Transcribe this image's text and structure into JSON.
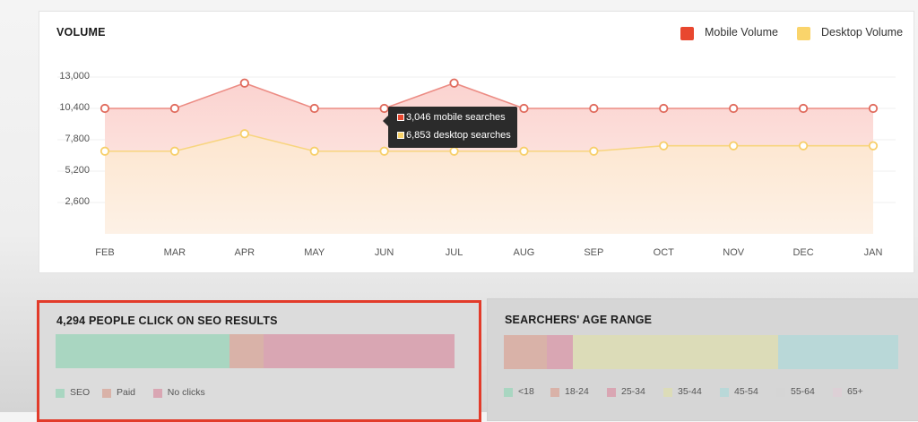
{
  "volume": {
    "title": "VOLUME",
    "legend": [
      {
        "label": "Mobile Volume",
        "color": "#e8472f"
      },
      {
        "label": "Desktop Volume",
        "color": "#fad46b"
      }
    ]
  },
  "chart_data": {
    "type": "area",
    "title": "VOLUME",
    "categories": [
      "FEB",
      "MAR",
      "APR",
      "MAY",
      "JUN",
      "JUL",
      "AUG",
      "SEP",
      "OCT",
      "NOV",
      "DEC",
      "JAN"
    ],
    "yticks": [
      "13,000",
      "10,400",
      "7,800",
      "5,200",
      "2,600"
    ],
    "ylim": [
      0,
      13000
    ],
    "series": [
      {
        "name": "Mobile Volume",
        "color": "#e8472f",
        "values": [
          10400,
          10400,
          12500,
          10400,
          10400,
          12500,
          10400,
          10400,
          10400,
          10400,
          10400,
          10400
        ]
      },
      {
        "name": "Desktop Volume",
        "color": "#fad46b",
        "values": [
          6853,
          6853,
          8300,
          6853,
          6853,
          6853,
          6853,
          6853,
          7300,
          7300,
          7300,
          7300
        ]
      }
    ],
    "legend_position": "top-right",
    "grid": true
  },
  "tooltip": {
    "mobile": "3,046 mobile searches",
    "desktop": "6,853 desktop searches"
  },
  "seo": {
    "title": "4,294 PEOPLE CLICK ON SEO RESULTS",
    "segments": [
      {
        "label": "SEO",
        "fraction": 0.437,
        "color": "#a9d6c1"
      },
      {
        "label": "Paid",
        "fraction": 0.085,
        "color": "#d9b2a8"
      },
      {
        "label": "No clicks",
        "fraction": 0.478,
        "color": "#d9a6b3"
      }
    ]
  },
  "age": {
    "title": "SEARCHERS' AGE RANGE",
    "segments": [
      {
        "label": "<18",
        "fraction": 0.0,
        "color": "#a9d6c1"
      },
      {
        "label": "18-24",
        "fraction": 0.11,
        "color": "#d9b2a8"
      },
      {
        "label": "25-34",
        "fraction": 0.065,
        "color": "#d9a6b3"
      },
      {
        "label": "35-44",
        "fraction": 0.52,
        "color": "#dcdcb8"
      },
      {
        "label": "45-54",
        "fraction": 0.305,
        "color": "#b9d8d8"
      },
      {
        "label": "55-64",
        "fraction": 0.0,
        "color": "#d5d5d5"
      },
      {
        "label": "65+",
        "fraction": 0.0,
        "color": "#ddd0d6"
      }
    ]
  }
}
